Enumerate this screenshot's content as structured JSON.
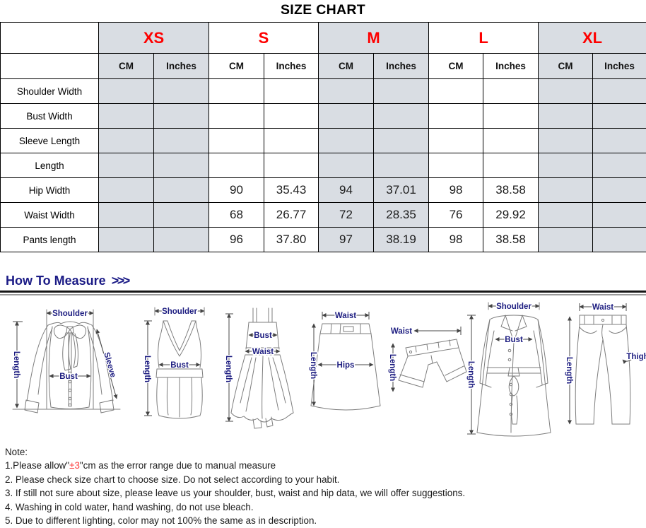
{
  "title": "SIZE CHART",
  "size_table": {
    "sizes": [
      "XS",
      "S",
      "M",
      "L",
      "XL"
    ],
    "units": [
      "CM",
      "Inches"
    ],
    "rows": [
      {
        "label": "Shoulder Width",
        "values": [
          "",
          "",
          "",
          "",
          "",
          "",
          "",
          "",
          "",
          ""
        ]
      },
      {
        "label": "Bust Width",
        "values": [
          "",
          "",
          "",
          "",
          "",
          "",
          "",
          "",
          "",
          ""
        ]
      },
      {
        "label": "Sleeve Length",
        "values": [
          "",
          "",
          "",
          "",
          "",
          "",
          "",
          "",
          "",
          ""
        ]
      },
      {
        "label": "Length",
        "values": [
          "",
          "",
          "",
          "",
          "",
          "",
          "",
          "",
          "",
          ""
        ]
      },
      {
        "label": "Hip Width",
        "values": [
          "",
          "",
          "90",
          "35.43",
          "94",
          "37.01",
          "98",
          "38.58",
          "",
          ""
        ]
      },
      {
        "label": "Waist Width",
        "values": [
          "",
          "",
          "68",
          "26.77",
          "72",
          "28.35",
          "76",
          "29.92",
          "",
          ""
        ]
      },
      {
        "label": "Pants length",
        "values": [
          "",
          "",
          "96",
          "37.80",
          "97",
          "38.19",
          "98",
          "38.58",
          "",
          ""
        ]
      }
    ]
  },
  "how_to_measure": {
    "title": "How To Measure",
    "arrows": ">>>"
  },
  "diagrams": [
    {
      "name": "blouse",
      "shoulder": "Shoulder",
      "length": "Length",
      "bust": "Bust",
      "sleeve": "Sleeve"
    },
    {
      "name": "tank-top",
      "shoulder": "Shoulder",
      "length": "Length",
      "bust": "Bust"
    },
    {
      "name": "slip-dress",
      "bust": "Bust",
      "waist": "Waist",
      "length": "Length"
    },
    {
      "name": "skirt",
      "waist": "Waist",
      "hips": "Hips",
      "length": "Length"
    },
    {
      "name": "shorts",
      "waist": "Waist",
      "length": "Length"
    },
    {
      "name": "coat",
      "shoulder": "Shoulder",
      "bust": "Bust",
      "length": "Length"
    },
    {
      "name": "pants",
      "waist": "Waist",
      "thigh": "Thigh",
      "length": "Length"
    }
  ],
  "notes": {
    "heading": "Note:",
    "line1": {
      "pre": "1.Please allow\"",
      "em": "±3",
      "post": "\"cm as the error range due to manual measure"
    },
    "line2": "2. Please check size chart to choose size. Do not select according to your habit.",
    "line3": "3. If still not sure about size, please leave us your shoulder, bust, waist and hip data, we will offer suggestions.",
    "line4": "4. Washing in cold water, hand washing, do not use bleach.",
    "line5": "5. Due to different lighting, color may not 100% the same as in description."
  },
  "colors": {
    "size_letter_red": "#fe0000",
    "note_em_red": "#fd4343",
    "measure_label_navy": "#1c1c80",
    "heading_navy": "#1b1b86",
    "shaded_cell": "#d9dde3",
    "table_border": "#000000"
  }
}
